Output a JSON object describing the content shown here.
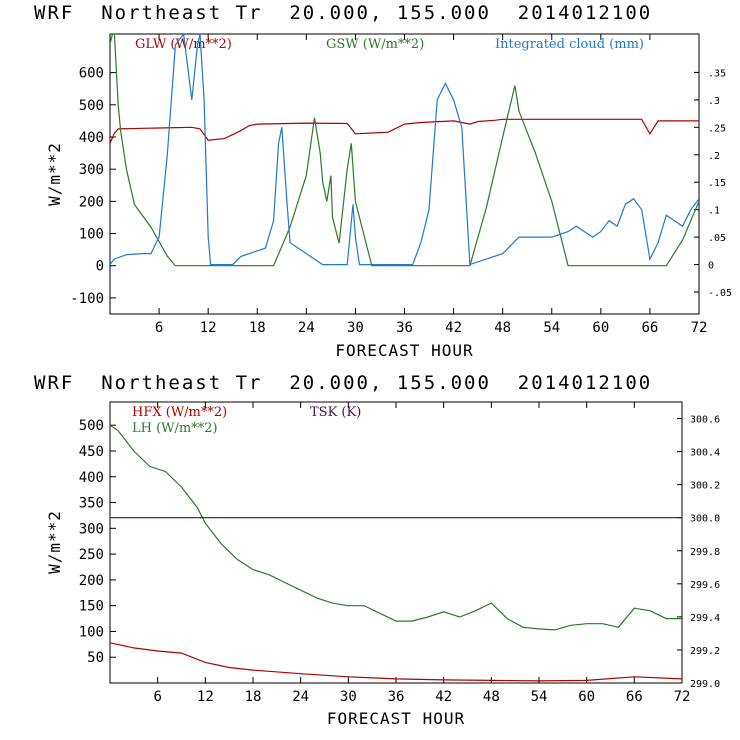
{
  "charts": [
    {
      "title": "WRF  Northeast Tr  20.000, 155.000  2014012100",
      "xlabel": "FORECAST HOUR",
      "ylabel": "W/m**2"
    },
    {
      "title": "WRF  Northeast Tr  20.000, 155.000  2014012100",
      "xlabel": "FORECAST HOUR",
      "ylabel": "W/m**2"
    }
  ],
  "chart_data": [
    {
      "type": "line",
      "title": "WRF  Northeast Tr  20.000, 155.000  2014012100",
      "xlabel": "FORECAST HOUR",
      "ylabel": "W/m**2",
      "xlim": [
        0,
        72
      ],
      "ylim": [
        -150,
        720
      ],
      "xticks": [
        6,
        12,
        18,
        24,
        30,
        36,
        42,
        48,
        54,
        60,
        66,
        72
      ],
      "yticks": [
        -100,
        0,
        100,
        200,
        300,
        400,
        500,
        600
      ],
      "y2lim": [
        -0.09,
        0.42
      ],
      "y2ticks": [
        "-.05",
        "0",
        ".05",
        ".1",
        ".15",
        ".2",
        ".25",
        ".3",
        ".35"
      ],
      "legend_placement": "top",
      "series": [
        {
          "name": "GLW (W/m**2)",
          "color": "#b00000",
          "axis": "left",
          "x": [
            0,
            0.5,
            1,
            4,
            6,
            10,
            11,
            12,
            14,
            16,
            17,
            18,
            24,
            29,
            30,
            34,
            36,
            38,
            42,
            44,
            45,
            47,
            48,
            54,
            60,
            65,
            66,
            67,
            72
          ],
          "y": [
            380,
            410,
            425,
            427,
            428,
            430,
            425,
            390,
            395,
            420,
            435,
            440,
            443,
            442,
            410,
            415,
            440,
            445,
            450,
            440,
            448,
            452,
            455,
            455,
            455,
            455,
            410,
            450,
            450
          ]
        },
        {
          "name": "GSW (W/m**2)",
          "color": "#2a7a2a",
          "axis": "left",
          "x": [
            0,
            0.5,
            1,
            1.3,
            2,
            3,
            5,
            7,
            8,
            20,
            22,
            24,
            25,
            25.7,
            26,
            26.5,
            27,
            27.2,
            28,
            29,
            29.5,
            30,
            32,
            44,
            46,
            48,
            49.5,
            50,
            52,
            54,
            56,
            68,
            70,
            72
          ],
          "y": [
            690,
            740,
            500,
            420,
            300,
            190,
            120,
            30,
            0,
            0,
            120,
            280,
            460,
            350,
            260,
            200,
            280,
            150,
            70,
            300,
            380,
            200,
            0,
            0,
            180,
            400,
            560,
            480,
            350,
            200,
            0,
            0,
            80,
            200
          ]
        },
        {
          "name": "Integrated cloud (mm)",
          "color": "#1f78d0",
          "axis": "right",
          "x": [
            0,
            0.5,
            2,
            4,
            5,
            6,
            7,
            8,
            9,
            10,
            10.7,
            11,
            11.5,
            12,
            12.3,
            15,
            16,
            19,
            20,
            20.6,
            21,
            21.6,
            22,
            24,
            26,
            28,
            29,
            29.7,
            30,
            30.5,
            31,
            32,
            34,
            37,
            38,
            39,
            39.5,
            40,
            41,
            42,
            43,
            44,
            46,
            48,
            50,
            52,
            54,
            56,
            57,
            59,
            60,
            61,
            62,
            63,
            64,
            65,
            66,
            67,
            68,
            70,
            71,
            72
          ],
          "y": [
            0,
            0.01,
            0.018,
            0.02,
            0.02,
            0.05,
            0.2,
            0.4,
            0.42,
            0.3,
            0.4,
            0.42,
            0.3,
            0.05,
            0.0,
            0.0,
            0.015,
            0.03,
            0.08,
            0.22,
            0.25,
            0.12,
            0.04,
            0.02,
            0.0,
            0.0,
            0.0,
            0.11,
            0.05,
            0.0,
            0.0,
            0.0,
            0.0,
            0.0,
            0.04,
            0.1,
            0.2,
            0.3,
            0.33,
            0.3,
            0.25,
            0.0,
            0.01,
            0.02,
            0.05,
            0.05,
            0.05,
            0.06,
            0.07,
            0.05,
            0.06,
            0.08,
            0.07,
            0.11,
            0.12,
            0.1,
            0.01,
            0.04,
            0.09,
            0.07,
            0.1,
            0.12
          ]
        }
      ]
    },
    {
      "type": "line",
      "title": "WRF  Northeast Tr  20.000, 155.000  2014012100",
      "xlabel": "FORECAST HOUR",
      "ylabel": "W/m**2",
      "xlim": [
        0,
        72
      ],
      "ylim": [
        0,
        545
      ],
      "xticks": [
        6,
        12,
        18,
        24,
        30,
        36,
        42,
        48,
        54,
        60,
        66,
        72
      ],
      "yticks": [
        50,
        100,
        150,
        200,
        250,
        300,
        350,
        400,
        450,
        500
      ],
      "y2lim": [
        299.0,
        300.7
      ],
      "y2ticks": [
        "299.0",
        "299.2",
        "299.4",
        "299.6",
        "299.8",
        "300.0",
        "300.2",
        "300.4",
        "300.6"
      ],
      "legend_placement": "top-left",
      "series": [
        {
          "name": "HFX (W/m**2)",
          "color": "#b00000",
          "axis": "left",
          "x": [
            0,
            3,
            6,
            9,
            12,
            15,
            18,
            24,
            30,
            36,
            42,
            48,
            54,
            60,
            66,
            72
          ],
          "y": [
            78,
            68,
            62,
            58,
            40,
            30,
            25,
            18,
            12,
            8,
            6,
            5,
            4,
            5,
            12,
            8
          ]
        },
        {
          "name": "LH (W/m**2)",
          "color": "#2a7a2a",
          "axis": "left",
          "x": [
            0,
            1,
            3,
            5,
            7,
            9,
            11,
            12,
            14,
            16,
            18,
            20,
            22,
            24,
            26,
            28,
            30,
            32,
            34,
            36,
            38,
            40,
            42,
            44,
            46,
            48,
            50,
            52,
            54,
            56,
            58,
            60,
            62,
            64,
            66,
            68,
            70,
            72
          ],
          "y": [
            500,
            490,
            450,
            420,
            410,
            380,
            340,
            310,
            270,
            240,
            220,
            210,
            195,
            180,
            165,
            155,
            150,
            150,
            135,
            120,
            120,
            128,
            138,
            128,
            140,
            155,
            125,
            108,
            105,
            103,
            112,
            115,
            115,
            108,
            145,
            140,
            125,
            125
          ]
        },
        {
          "name": "TSK (K)",
          "color": "#4a1040",
          "axis": "right",
          "x": [
            0,
            72
          ],
          "y": [
            300.0,
            300.0
          ]
        }
      ]
    }
  ]
}
